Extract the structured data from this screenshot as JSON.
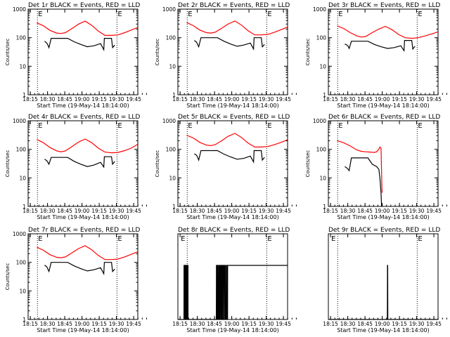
{
  "chart_data": [
    {
      "title": "Det 1r BLACK = Events, RED = LLD",
      "xlabel": "Start Time (19-May-14 18:14:00)",
      "ylabel": "Counts/sec",
      "type": "line",
      "xlim": [
        0,
        100
      ],
      "ylim": [
        1,
        1000
      ],
      "yscale": "log",
      "x_tick_labels": [
        "18:15",
        "18:30",
        "18:45",
        "19:00",
        "19:15",
        "19:30",
        "19:45"
      ],
      "y_tick_labels": [
        "1",
        "10",
        "100",
        "1000"
      ],
      "markers": [
        {
          "x": 8.5,
          "label": "E"
        },
        {
          "x": 81,
          "label": "E"
        }
      ],
      "dotted_x": [
        8.5,
        81
      ],
      "series": [
        {
          "color": "#ff0000",
          "x": [
            8,
            14,
            20,
            26,
            30,
            34,
            40,
            46,
            52,
            58,
            64,
            70,
            76,
            82,
            88,
            94,
            100
          ],
          "y": [
            330,
            260,
            180,
            145,
            140,
            150,
            210,
            300,
            380,
            270,
            170,
            120,
            120,
            125,
            150,
            185,
            230
          ]
        },
        {
          "color": "#000000",
          "x": [
            15,
            17,
            18,
            19,
            21,
            24,
            27,
            30,
            33,
            36,
            42,
            48,
            54,
            60,
            66,
            69,
            69.5,
            72,
            76,
            77,
            79
          ],
          "y": [
            75,
            65,
            55,
            45,
            95,
            95,
            95,
            95,
            95,
            95,
            72,
            58,
            48,
            52,
            62,
            38,
            95,
            95,
            95,
            45,
            55
          ]
        }
      ]
    },
    {
      "title": "Det 2r BLACK = Events, RED = LLD",
      "xlabel": "Start Time (19-May-14 18:14:00)",
      "ylabel": "Counts/sec",
      "type": "line",
      "xlim": [
        0,
        100
      ],
      "ylim": [
        1,
        1000
      ],
      "yscale": "log",
      "x_tick_labels": [
        "18:15",
        "18:30",
        "18:45",
        "19:00",
        "19:15",
        "19:30",
        "19:45"
      ],
      "y_tick_labels": [
        "1",
        "10",
        "100",
        "1000"
      ],
      "markers": [
        {
          "x": 8.5,
          "label": "E"
        },
        {
          "x": 81,
          "label": "E"
        }
      ],
      "dotted_x": [
        8.5,
        81
      ],
      "series": [
        {
          "color": "#ff0000",
          "x": [
            8,
            14,
            20,
            26,
            30,
            34,
            40,
            46,
            52,
            58,
            64,
            70,
            76,
            82,
            88,
            94,
            100
          ],
          "y": [
            340,
            265,
            185,
            150,
            145,
            155,
            215,
            305,
            385,
            275,
            175,
            125,
            125,
            130,
            155,
            190,
            235
          ]
        },
        {
          "color": "#000000",
          "x": [
            15,
            17,
            18,
            19,
            21,
            24,
            27,
            30,
            33,
            36,
            42,
            48,
            54,
            60,
            66,
            69,
            69.5,
            72,
            76,
            77,
            79
          ],
          "y": [
            80,
            70,
            58,
            48,
            100,
            100,
            100,
            100,
            100,
            100,
            75,
            60,
            50,
            55,
            65,
            40,
            100,
            100,
            100,
            48,
            58
          ]
        }
      ]
    },
    {
      "title": "Det 3r BLACK = Events, RED = LLD",
      "xlabel": "Start Time (19-May-14 18:14:00)",
      "ylabel": "Counts/sec",
      "type": "line",
      "xlim": [
        0,
        100
      ],
      "ylim": [
        1,
        1000
      ],
      "yscale": "log",
      "x_tick_labels": [
        "18:15",
        "18:30",
        "18:45",
        "19:00",
        "19:15",
        "19:30",
        "19:45"
      ],
      "y_tick_labels": [
        "1",
        "10",
        "100",
        "1000"
      ],
      "markers": [
        {
          "x": 8.5,
          "label": "E"
        },
        {
          "x": 81,
          "label": "E"
        }
      ],
      "dotted_x": [
        8.5,
        81
      ],
      "series": [
        {
          "color": "#ff0000",
          "x": [
            8,
            14,
            20,
            26,
            30,
            34,
            40,
            46,
            52,
            58,
            64,
            70,
            76,
            82,
            88,
            94,
            100
          ],
          "y": [
            260,
            210,
            150,
            115,
            105,
            110,
            150,
            200,
            250,
            190,
            130,
            100,
            95,
            100,
            115,
            135,
            160
          ]
        },
        {
          "color": "#000000",
          "x": [
            15,
            17,
            18,
            19,
            21,
            24,
            27,
            30,
            33,
            36,
            42,
            48,
            54,
            60,
            66,
            69,
            69.5,
            72,
            76,
            77,
            79
          ],
          "y": [
            60,
            55,
            50,
            42,
            75,
            75,
            75,
            75,
            75,
            75,
            58,
            48,
            42,
            45,
            52,
            35,
            80,
            80,
            80,
            40,
            50
          ]
        }
      ]
    },
    {
      "title": "Det 4r BLACK = Events, RED = LLD",
      "xlabel": "Start Time (19-May-14 18:14:00)",
      "ylabel": "Counts/sec",
      "type": "line",
      "xlim": [
        0,
        100
      ],
      "ylim": [
        1,
        1000
      ],
      "yscale": "log",
      "x_tick_labels": [
        "18:15",
        "18:30",
        "18:45",
        "19:00",
        "19:15",
        "19:30",
        "19:45"
      ],
      "y_tick_labels": [
        "1",
        "10",
        "100",
        "1000"
      ],
      "markers": [
        {
          "x": 8.5,
          "label": "E"
        },
        {
          "x": 81,
          "label": "E"
        }
      ],
      "dotted_x": [
        8.5,
        81
      ],
      "series": [
        {
          "color": "#ff0000",
          "x": [
            8,
            14,
            20,
            26,
            30,
            34,
            40,
            46,
            52,
            58,
            64,
            70,
            76,
            82,
            88,
            94,
            100
          ],
          "y": [
            220,
            170,
            115,
            88,
            82,
            88,
            125,
            180,
            230,
            170,
            110,
            80,
            75,
            78,
            90,
            110,
            150
          ]
        },
        {
          "color": "#000000",
          "x": [
            15,
            17,
            18,
            19,
            21,
            24,
            27,
            30,
            33,
            36,
            42,
            48,
            54,
            60,
            66,
            69,
            69.5,
            72,
            76,
            77,
            79
          ],
          "y": [
            45,
            40,
            35,
            30,
            52,
            52,
            52,
            52,
            52,
            52,
            38,
            30,
            25,
            28,
            35,
            24,
            55,
            55,
            55,
            30,
            38
          ]
        }
      ]
    },
    {
      "title": "Det 5r BLACK = Events, RED = LLD",
      "xlabel": "Start Time (19-May-14 18:14:00)",
      "ylabel": "Counts/sec",
      "type": "line",
      "xlim": [
        0,
        100
      ],
      "ylim": [
        1,
        1000
      ],
      "yscale": "log",
      "x_tick_labels": [
        "18:15",
        "18:30",
        "18:45",
        "19:00",
        "19:15",
        "19:30",
        "19:45"
      ],
      "y_tick_labels": [
        "1",
        "10",
        "100",
        "1000"
      ],
      "markers": [
        {
          "x": 8.5,
          "label": "E"
        },
        {
          "x": 81,
          "label": "E"
        }
      ],
      "dotted_x": [
        8.5,
        81
      ],
      "series": [
        {
          "color": "#ff0000",
          "x": [
            8,
            14,
            20,
            26,
            30,
            34,
            40,
            46,
            52,
            58,
            64,
            70,
            76,
            82,
            88,
            94,
            100
          ],
          "y": [
            310,
            250,
            175,
            140,
            135,
            145,
            200,
            290,
            360,
            260,
            165,
            120,
            120,
            125,
            145,
            175,
            215
          ]
        },
        {
          "color": "#000000",
          "x": [
            15,
            17,
            18,
            19,
            21,
            24,
            27,
            30,
            33,
            36,
            42,
            48,
            54,
            60,
            66,
            69,
            69.5,
            72,
            76,
            77,
            79
          ],
          "y": [
            70,
            62,
            52,
            42,
            90,
            90,
            90,
            90,
            90,
            90,
            68,
            54,
            45,
            48,
            58,
            36,
            90,
            90,
            90,
            42,
            52
          ]
        }
      ]
    },
    {
      "title": "Det 6r BLACK = Events, RED = LLD",
      "xlabel": "Start Time (19-May-14 18:14:00)",
      "ylabel": "Counts/sec",
      "type": "line",
      "xlim": [
        0,
        100
      ],
      "ylim": [
        1,
        1000
      ],
      "yscale": "log",
      "x_tick_labels": [
        "18:15",
        "18:30",
        "18:45",
        "19:00",
        "19:15",
        "19:30",
        "19:45"
      ],
      "y_tick_labels": [
        "1",
        "10",
        "100",
        "1000"
      ],
      "markers": [
        {
          "x": 8.5,
          "label": "E"
        },
        {
          "x": 81,
          "label": "E"
        }
      ],
      "dotted_x": [
        8.5,
        81
      ],
      "series": [
        {
          "color": "#ff0000",
          "x": [
            8,
            14,
            20,
            26,
            30,
            34,
            38,
            42,
            44,
            46,
            47,
            48,
            48.5,
            49
          ],
          "y": [
            200,
            170,
            130,
            95,
            85,
            82,
            80,
            78,
            82,
            100,
            120,
            110,
            15,
            3
          ]
        },
        {
          "color": "#000000",
          "x": [
            15,
            17,
            18,
            19,
            21,
            24,
            27,
            30,
            33,
            36,
            40,
            44,
            46,
            47,
            48,
            48.5
          ],
          "y": [
            25,
            22,
            20,
            18,
            50,
            50,
            50,
            50,
            50,
            50,
            30,
            25,
            20,
            10,
            3,
            1
          ]
        }
      ]
    },
    {
      "title": "Det 7r BLACK = Events, RED = LLD",
      "xlabel": "Start Time (19-May-14 18:14:00)",
      "ylabel": "Counts/sec",
      "type": "line",
      "xlim": [
        0,
        100
      ],
      "ylim": [
        1,
        1000
      ],
      "yscale": "log",
      "x_tick_labels": [
        "18:15",
        "18:30",
        "18:45",
        "19:00",
        "19:15",
        "19:30",
        "19:45"
      ],
      "y_tick_labels": [
        "1",
        "10",
        "100",
        "1000"
      ],
      "markers": [
        {
          "x": 8.5,
          "label": "E"
        },
        {
          "x": 81,
          "label": "E"
        }
      ],
      "dotted_x": [
        8.5,
        81
      ],
      "series": [
        {
          "color": "#ff0000",
          "x": [
            8,
            14,
            20,
            26,
            30,
            34,
            40,
            46,
            52,
            58,
            64,
            70,
            76,
            82,
            88,
            94,
            100
          ],
          "y": [
            340,
            265,
            185,
            150,
            145,
            155,
            215,
            305,
            385,
            275,
            175,
            125,
            125,
            130,
            155,
            190,
            235
          ]
        },
        {
          "color": "#000000",
          "x": [
            15,
            17,
            18,
            19,
            21,
            24,
            27,
            30,
            33,
            36,
            42,
            48,
            54,
            60,
            66,
            69,
            69.5,
            72,
            76,
            77,
            79
          ],
          "y": [
            80,
            70,
            58,
            48,
            100,
            100,
            100,
            100,
            100,
            100,
            75,
            60,
            50,
            55,
            65,
            40,
            100,
            100,
            100,
            48,
            58
          ]
        }
      ]
    },
    {
      "title": "Det 8r BLACK = Events, RED = LLD",
      "xlabel": "Start Time (19-May-14 18:14:00)",
      "ylabel": "",
      "type": "line",
      "xlim": [
        0,
        100
      ],
      "ylim": [
        1,
        3
      ],
      "yscale": "log",
      "x_tick_labels": [
        "18:15",
        "18:30",
        "18:45",
        "19:00",
        "19:15",
        "19:30",
        "19:45"
      ],
      "y_tick_labels": [],
      "markers": [
        {
          "x": 2,
          "label": "E"
        },
        {
          "x": 81,
          "label": "E"
        }
      ],
      "dotted_x": [
        8.5,
        81
      ],
      "series": [
        {
          "color": "#000000",
          "x": [
            0,
            5.5,
            5.6,
            5.7,
            5.8,
            6.2,
            6.3,
            6.6,
            6.7,
            6.9,
            7.0,
            7.5,
            7.6,
            8.0,
            8.1,
            8.5,
            8.6,
            9.0,
            9.1,
            9.2,
            9.3,
            35,
            35.1,
            35.4,
            35.5,
            35.8,
            35.9,
            36.3,
            36.4,
            37.0,
            37.1,
            37.6,
            37.7,
            38.3,
            38.4,
            39.0,
            39.1,
            39.6,
            39.7,
            40.3,
            40.4,
            41.0,
            41.1,
            41.8,
            41.9,
            42.4,
            42.5,
            43.2,
            43.3,
            44.0,
            44.1,
            44.6,
            44.7,
            45.3,
            45.4,
            100
          ],
          "y": [
            1,
            1,
            2,
            2,
            1,
            1,
            2,
            2,
            1,
            1,
            2,
            2,
            1,
            1,
            2,
            2,
            1,
            1,
            2,
            2,
            1,
            1,
            2,
            2,
            1,
            1,
            2,
            2,
            1,
            1,
            2,
            2,
            1,
            1,
            2,
            2,
            1,
            1,
            2,
            2,
            1,
            1,
            2,
            2,
            1,
            1,
            2,
            2,
            1,
            1,
            2,
            2,
            1,
            1,
            2,
            2
          ]
        }
      ]
    },
    {
      "title": "Det 9r BLACK = Events, RED = LLD",
      "xlabel": "Start Time (19-May-14 18:14:00)",
      "ylabel": "",
      "type": "line",
      "xlim": [
        0,
        100
      ],
      "ylim": [
        1,
        3
      ],
      "yscale": "log",
      "x_tick_labels": [
        "18:15",
        "18:30",
        "18:45",
        "19:00",
        "19:15",
        "19:30",
        "19:45"
      ],
      "y_tick_labels": [],
      "markers": [
        {
          "x": 2,
          "label": "E"
        },
        {
          "x": 81,
          "label": "E"
        }
      ],
      "dotted_x": [
        8.5,
        81
      ],
      "series": [
        {
          "color": "#000000",
          "x": [
            0,
            53.8,
            53.9,
            54.1,
            54.2,
            100
          ],
          "y": [
            1,
            1,
            2,
            2,
            1,
            1
          ]
        }
      ]
    }
  ]
}
